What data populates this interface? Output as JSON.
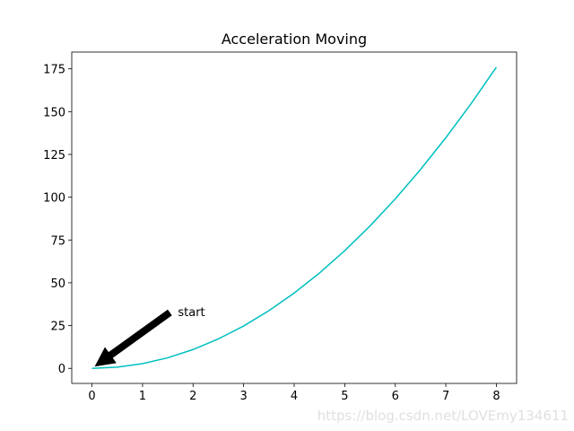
{
  "chart_data": {
    "type": "line",
    "title": "Acceleration Moving",
    "x": [
      0,
      0.5,
      1,
      1.5,
      2,
      2.5,
      3,
      3.5,
      4,
      4.5,
      5,
      5.5,
      6,
      6.5,
      7,
      7.5,
      8
    ],
    "series": [
      {
        "color": "#00bfbf",
        "values": [
          0,
          0.6875,
          2.75,
          6.1875,
          11,
          17.1875,
          24.75,
          33.6875,
          44,
          55.6875,
          68.75,
          83.1875,
          99,
          116.1875,
          134.75,
          154.6875,
          176
        ]
      }
    ],
    "xlim": [
      -0.4,
      8.4
    ],
    "xticks": [
      0,
      1,
      2,
      3,
      4,
      5,
      6,
      7,
      8
    ],
    "ylim": [
      -8.8,
      184.8
    ],
    "yticks": [
      0,
      25,
      50,
      75,
      100,
      125,
      150,
      175
    ],
    "annotation": {
      "text": "start",
      "xy": [
        0,
        0
      ],
      "xytext": [
        1.7,
        30
      ],
      "color": "#000000"
    },
    "watermark": "https://blog.csdn.net/LOVEmy134611"
  }
}
